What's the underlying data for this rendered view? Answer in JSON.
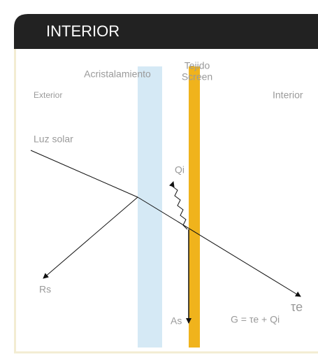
{
  "header": {
    "title": "INTERIOR"
  },
  "labels": {
    "glazing": "Acristalamiento",
    "fabric_1": "Tejido",
    "fabric_2": "Screen",
    "exterior": "Exterior",
    "interior": "Interior",
    "sunlight": "Luz solar",
    "qi": "Qi",
    "rs": "Rs",
    "as": "As",
    "te": "τe",
    "formula": "G = τe + Qi"
  }
}
